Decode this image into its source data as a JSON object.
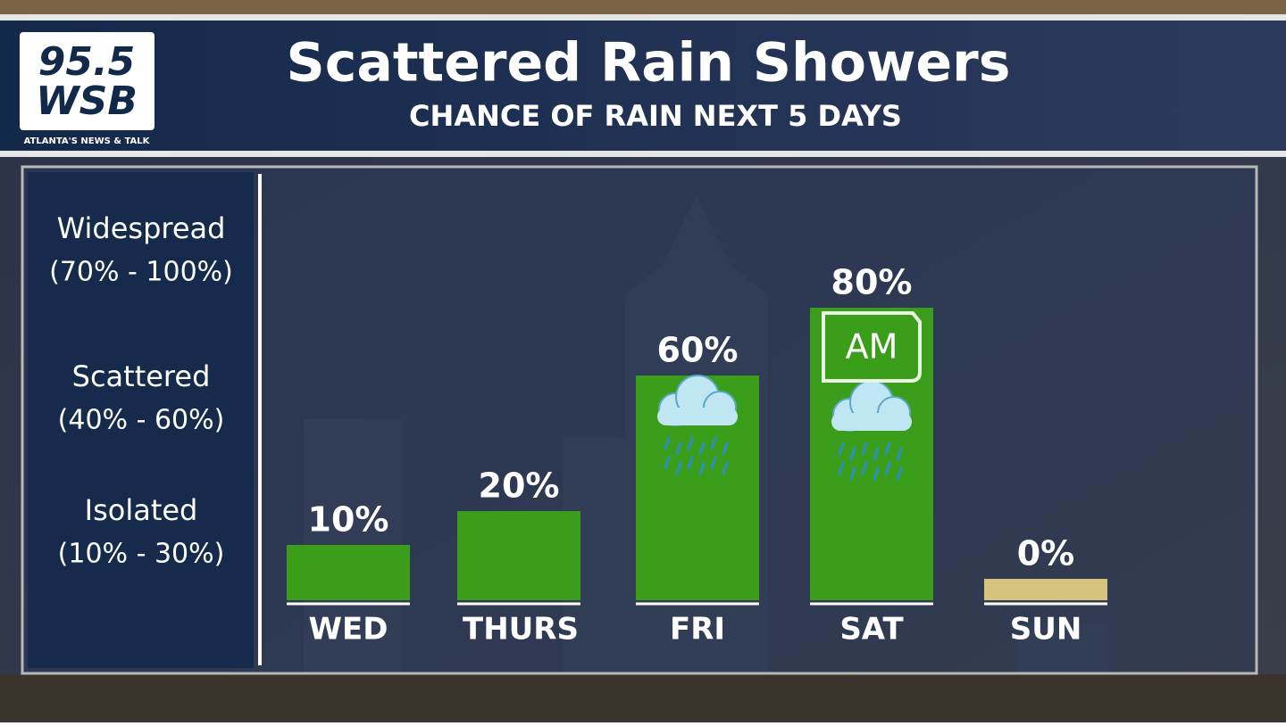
{
  "header": {
    "logo_top": "95.5",
    "logo_bottom": "WSB",
    "tagline": "ATLANTA'S NEWS & TALK"
  },
  "chart_data": {
    "type": "bar",
    "title": "Scattered Rain Showers",
    "subtitle": "CHANCE OF RAIN NEXT 5 DAYS",
    "categories": [
      "WED",
      "THURS",
      "FRI",
      "SAT",
      "SUN"
    ],
    "values": [
      10,
      20,
      60,
      80,
      0
    ],
    "value_labels": [
      "10%",
      "20%",
      "60%",
      "80%",
      "0%"
    ],
    "colors": [
      "#3a9e1a",
      "#3a9e1a",
      "#3a9e1a",
      "#3a9e1a",
      "#d6c47c"
    ],
    "annotations": [
      {
        "category": "SAT",
        "text": "AM"
      }
    ],
    "bands": [
      {
        "label": "Widespread",
        "range": "(70% - 100%)"
      },
      {
        "label": "Scattered",
        "range": "(40% - 60%)"
      },
      {
        "label": "Isolated",
        "range": "(10% - 30%)"
      }
    ]
  }
}
